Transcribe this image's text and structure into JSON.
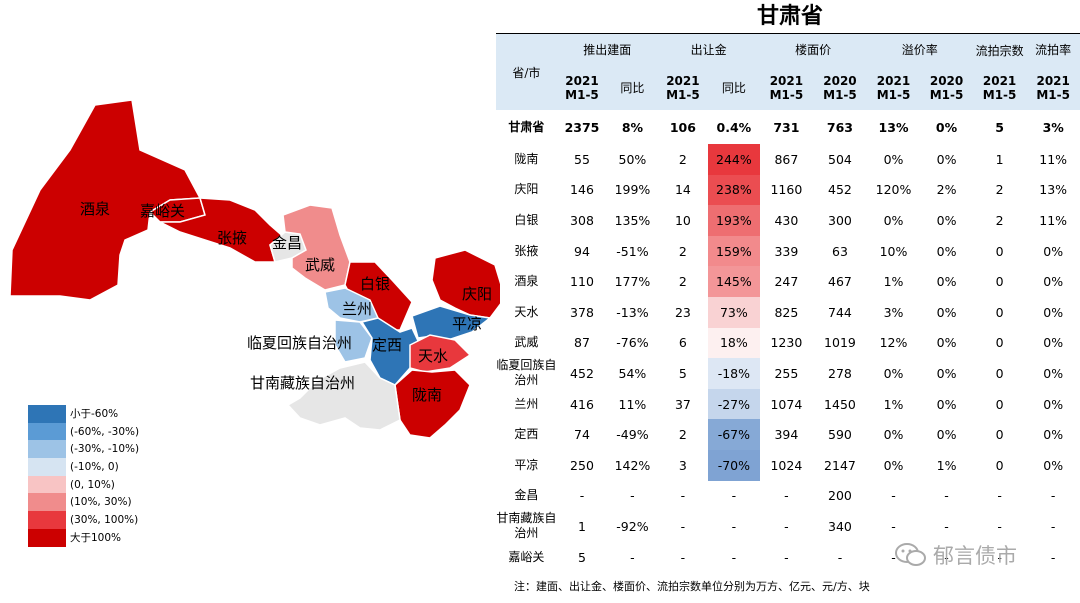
{
  "title": "甘肃省",
  "colors": {
    "deep_blue": "#2e75b6",
    "mid_blue": "#5b9bd5",
    "light_blue": "#9dc3e6",
    "pale_blue": "#d6e4f2",
    "pale_red": "#f8c4c4",
    "light_red": "#f08c8c",
    "mid_red": "#e8383d",
    "deep_red": "#cc0000",
    "no_data": "#e6e6e6",
    "header_bg": "#dbe9f5"
  },
  "map": {
    "labels": {
      "jiuquan": "酒泉",
      "jiayuguan": "嘉峪关",
      "zhangye": "张掖",
      "jinchang": "金昌",
      "wuwei": "武威",
      "baiyin": "白银",
      "lanzhou": "兰州",
      "linxia": "临夏回族自治州",
      "dingxi": "定西",
      "pingliang": "平凉",
      "qingyang": "庆阳",
      "tianshui": "天水",
      "longnan": "陇南",
      "gannan": "甘南藏族自治州"
    },
    "legend": [
      {
        "label": "小于-60%",
        "color": "#2e75b6"
      },
      {
        "label": "(-60%, -30%)",
        "color": "#5b9bd5"
      },
      {
        "label": "(-30%, -10%)",
        "color": "#9dc3e6"
      },
      {
        "label": "(-10%, 0)",
        "color": "#d6e4f2"
      },
      {
        "label": "(0, 10%)",
        "color": "#f8c4c4"
      },
      {
        "label": "(10%, 30%)",
        "color": "#f08c8c"
      },
      {
        "label": "(30%, 100%)",
        "color": "#e8383d"
      },
      {
        "label": "大于100%",
        "color": "#cc0000"
      }
    ]
  },
  "table": {
    "region_header": "省/市",
    "groups": [
      "推出建面",
      "出让金",
      "楼面价",
      "溢价率",
      "流拍宗数",
      "流拍率"
    ],
    "sub": {
      "y2021": "2021 M1-5",
      "y2020": "2020 M1-5",
      "yoy": "同比"
    },
    "province": {
      "name": "甘肃省",
      "cells": [
        "2375",
        "8%",
        "106",
        "0.4%",
        "731",
        "763",
        "13%",
        "0%",
        "5",
        "3%"
      ]
    },
    "rows": [
      {
        "name": "陇南",
        "cells": [
          "55",
          "50%",
          "2",
          "244%",
          "867",
          "504",
          "0%",
          "0%",
          "1",
          "11%"
        ],
        "heat": "#e8383d"
      },
      {
        "name": "庆阳",
        "cells": [
          "146",
          "199%",
          "14",
          "238%",
          "1160",
          "452",
          "120%",
          "2%",
          "2",
          "13%"
        ],
        "heat": "#eb4d51"
      },
      {
        "name": "白银",
        "cells": [
          "308",
          "135%",
          "10",
          "193%",
          "430",
          "300",
          "0%",
          "0%",
          "2",
          "11%"
        ],
        "heat": "#ee6e71"
      },
      {
        "name": "张掖",
        "cells": [
          "94",
          "-51%",
          "2",
          "159%",
          "339",
          "63",
          "10%",
          "0%",
          "0",
          "0%"
        ],
        "heat": "#f28a8c"
      },
      {
        "name": "酒泉",
        "cells": [
          "110",
          "177%",
          "2",
          "145%",
          "247",
          "467",
          "1%",
          "0%",
          "0",
          "0%"
        ],
        "heat": "#f39698"
      },
      {
        "name": "天水",
        "cells": [
          "378",
          "-13%",
          "23",
          "73%",
          "825",
          "744",
          "3%",
          "0%",
          "0",
          "0%"
        ],
        "heat": "#f9d2d3"
      },
      {
        "name": "武威",
        "cells": [
          "87",
          "-76%",
          "6",
          "18%",
          "1230",
          "1019",
          "12%",
          "0%",
          "0",
          "0%"
        ],
        "heat": "#fdf0f0"
      },
      {
        "name": "临夏回族自治州",
        "cells": [
          "452",
          "54%",
          "5",
          "-18%",
          "255",
          "278",
          "0%",
          "0%",
          "0",
          "0%"
        ],
        "heat": "#dde7f4"
      },
      {
        "name": "兰州",
        "cells": [
          "416",
          "11%",
          "37",
          "-27%",
          "1074",
          "1450",
          "1%",
          "0%",
          "0",
          "0%"
        ],
        "heat": "#c5d6ec"
      },
      {
        "name": "定西",
        "cells": [
          "74",
          "-49%",
          "2",
          "-67%",
          "394",
          "590",
          "0%",
          "0%",
          "0",
          "0%"
        ],
        "heat": "#86a9d6"
      },
      {
        "name": "平凉",
        "cells": [
          "250",
          "142%",
          "3",
          "-70%",
          "1024",
          "2147",
          "0%",
          "1%",
          "0",
          "0%"
        ],
        "heat": "#7fa3d3"
      },
      {
        "name": "金昌",
        "cells": [
          "-",
          "-",
          "-",
          "-",
          "-",
          "200",
          "-",
          "-",
          "-",
          "-"
        ],
        "heat": ""
      },
      {
        "name": "甘南藏族自治州",
        "cells": [
          "1",
          "-92%",
          "-",
          "-",
          "-",
          "340",
          "-",
          "-",
          "-",
          "-"
        ],
        "heat": ""
      },
      {
        "name": "嘉峪关",
        "cells": [
          "5",
          "-",
          "-",
          "-",
          "-",
          "-",
          "-",
          "-",
          "-",
          "-"
        ],
        "heat": ""
      }
    ]
  },
  "note": "注：建面、出让金、楼面价、流拍宗数单位分别为万方、亿元、元/方、块",
  "watermark": "郁言债市"
}
